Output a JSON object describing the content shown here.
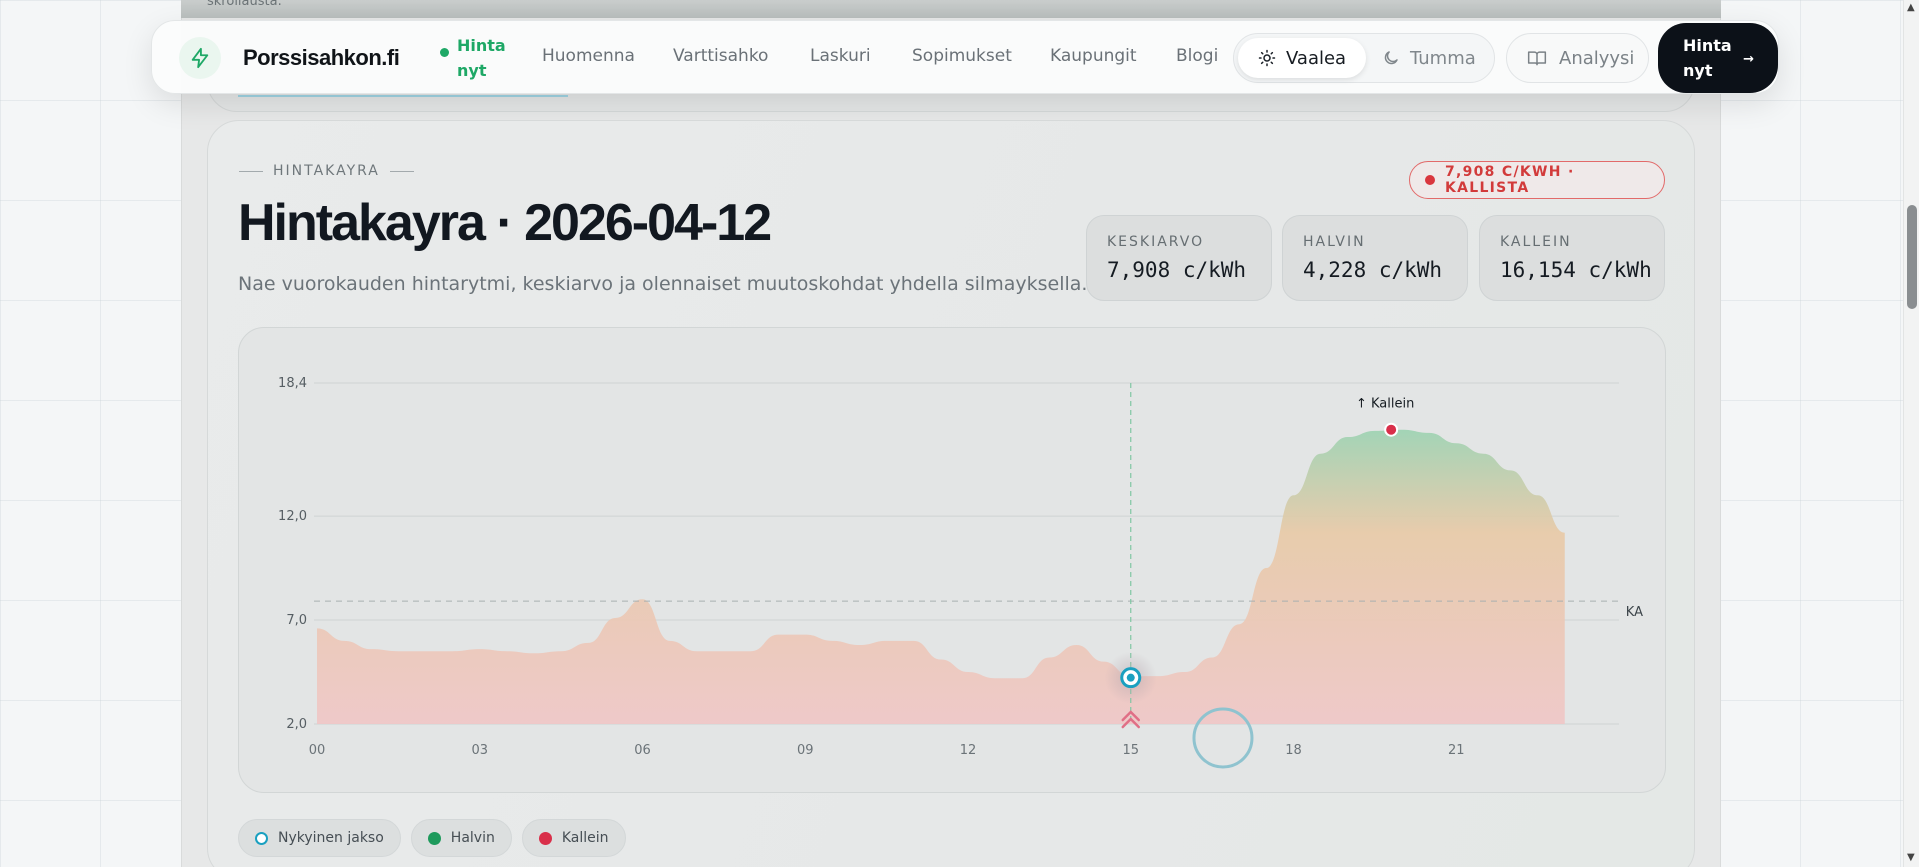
{
  "top_strip_text": "skrollausta.",
  "nav": {
    "brand": "Porssisahkon.fi",
    "active_item": "Hinta nyt",
    "links": [
      "Huomenna",
      "Varttisahko",
      "Laskuri",
      "Sopimukset",
      "Kaupungit",
      "Blogi"
    ],
    "theme_light": "Vaalea",
    "theme_dark": "Tumma",
    "analysis": "Analyysi",
    "cta": "Hinta nyt",
    "cta_arrow": "→"
  },
  "header": {
    "eyebrow": "HINTAKAYRA",
    "title": "Hintakayra · 2026-04-12",
    "subtitle": "Nae vuorokauden hintarytmi, keskiarvo ja olennaiset muutoskohdat yhdella silmayksella.",
    "badge": "7,908 C/KWH · KALLISTA"
  },
  "stats": [
    {
      "label": "KESKIARVO",
      "value": "7,908 c/kWh"
    },
    {
      "label": "HALVIN",
      "value": "4,228 c/kWh"
    },
    {
      "label": "KALLEIN",
      "value": "16,154 c/kWh"
    }
  ],
  "chart_data": {
    "type": "area",
    "x_ticks": [
      "00",
      "03",
      "06",
      "09",
      "12",
      "15",
      "18",
      "21"
    ],
    "y_ticks": [
      "18,4",
      "12,0",
      "7,0",
      "2,0"
    ],
    "y_tick_values": [
      18.4,
      12.0,
      7.0,
      2.0
    ],
    "ylim": [
      2.0,
      18.4
    ],
    "xlim": [
      0,
      24
    ],
    "average": 7.908,
    "average_label": "KA",
    "current_hour": 15,
    "current_value": 4.228,
    "max_hour": 19.8,
    "max_value": 16.154,
    "max_label": "↑ Kallein",
    "series": [
      {
        "x": [
          0,
          0.5,
          1,
          1.5,
          2,
          2.5,
          3,
          3.5,
          4,
          4.5,
          5,
          5.5,
          6,
          6.5,
          7,
          7.5,
          8,
          8.5,
          9,
          9.5,
          10,
          10.5,
          11,
          11.5,
          12,
          12.5,
          13,
          13.5,
          14,
          14.5,
          15,
          15.5,
          16,
          16.5,
          17,
          17.5,
          18,
          18.5,
          19,
          19.5,
          20,
          20.5,
          21,
          21.5,
          22,
          22.5,
          23
        ],
        "y": [
          6.6,
          6.0,
          5.6,
          5.5,
          5.5,
          5.5,
          5.6,
          5.5,
          5.4,
          5.5,
          5.9,
          7.1,
          8.0,
          6.0,
          5.5,
          5.5,
          5.5,
          6.3,
          6.3,
          6.0,
          5.8,
          6.0,
          6.0,
          5.1,
          4.5,
          4.2,
          4.2,
          5.2,
          5.8,
          5.0,
          4.3,
          4.3,
          4.5,
          5.2,
          6.8,
          9.5,
          13.0,
          15.0,
          15.8,
          16.1,
          16.15,
          16.0,
          15.5,
          15.0,
          14.2,
          13.0,
          11.2
        ]
      }
    ]
  },
  "legend": {
    "current": "Nykyinen jakso",
    "cheapest": "Halvin",
    "most_expensive": "Kallein"
  },
  "colors": {
    "accent_green": "#1ea866",
    "accent_red": "#d9363e",
    "current_teal": "#1aa0c0",
    "dark": "#0c1118"
  }
}
